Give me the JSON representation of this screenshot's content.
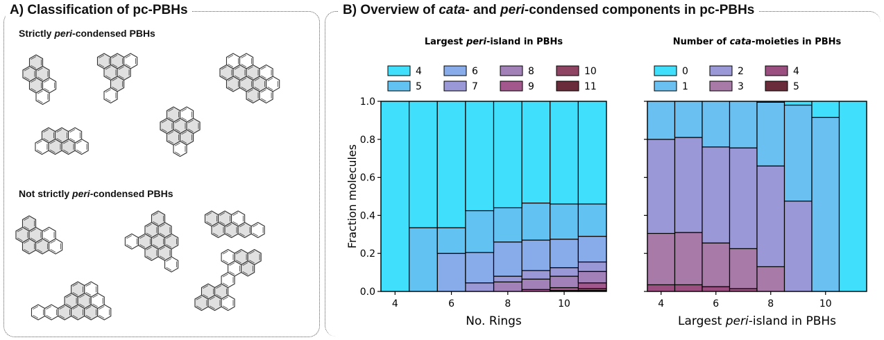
{
  "panel_a": {
    "title": "A) Classification of pc-PBHs",
    "strict": {
      "pre": "Strictly ",
      "em": "peri",
      "post": "-condensed PBHs"
    },
    "not_strict": {
      "pre": "Not strictly ",
      "em": "peri",
      "post": "-condensed PBHs"
    }
  },
  "panel_b": {
    "title_pre": "B) Overview of ",
    "title_em1": "cata",
    "title_mid": "- and ",
    "title_em2": "peri",
    "title_post": "-condensed components in pc-PBHs"
  },
  "colors": {
    "fill_grey": "#e0e0e0",
    "stroke": "#333333",
    "frame": "#555555"
  },
  "chart_data": [
    {
      "type": "bar",
      "stacked": true,
      "title_pre": "Largest ",
      "title_em": "peri",
      "title_post": "-island in PBHs",
      "xlabel": "No. Rings",
      "ylabel": "Fraction molecules",
      "ylim": [
        0,
        1.0
      ],
      "xlim": [
        3.5,
        11.5
      ],
      "x": [
        4,
        5,
        6,
        7,
        8,
        9,
        10,
        11
      ],
      "xticks": [
        "4",
        "6",
        "8",
        "10"
      ],
      "xtick_values": [
        4,
        6,
        8,
        10
      ],
      "yticks": [
        "0.0",
        "0.2",
        "0.4",
        "0.6",
        "0.8",
        "1.0"
      ],
      "ytick_values": [
        0,
        0.2,
        0.4,
        0.6,
        0.8,
        1.0
      ],
      "legend_placement": "top",
      "series": [
        {
          "name": "11",
          "color": "#6a2c3a",
          "values": [
            0,
            0,
            0,
            0,
            0,
            0,
            0,
            0.005
          ]
        },
        {
          "name": "10",
          "color": "#8e4462",
          "values": [
            0,
            0,
            0,
            0,
            0,
            0,
            0.005,
            0.01
          ]
        },
        {
          "name": "9",
          "color": "#a2588c",
          "values": [
            0,
            0,
            0,
            0,
            0,
            0.01,
            0.015,
            0.03
          ]
        },
        {
          "name": "8",
          "color": "#a280b8",
          "values": [
            0,
            0,
            0,
            0,
            0.05,
            0.055,
            0.06,
            0.06
          ]
        },
        {
          "name": "7",
          "color": "#9a98d6",
          "values": [
            0,
            0,
            0,
            0.045,
            0.03,
            0.045,
            0.045,
            0.05
          ]
        },
        {
          "name": "6",
          "color": "#88acea",
          "values": [
            0,
            0,
            0.2,
            0.16,
            0.18,
            0.16,
            0.15,
            0.135
          ]
        },
        {
          "name": "5",
          "color": "#62c2f2",
          "values": [
            0,
            0.335,
            0.135,
            0.22,
            0.18,
            0.195,
            0.185,
            0.17
          ]
        },
        {
          "name": "4",
          "color": "#40e0fc",
          "values": [
            1.0,
            0.665,
            0.665,
            0.575,
            0.56,
            0.535,
            0.54,
            0.54
          ]
        }
      ],
      "legend_order": [
        "4",
        "5",
        "6",
        "7",
        "8",
        "9",
        "10",
        "11"
      ]
    },
    {
      "type": "bar",
      "stacked": true,
      "title_pre": "Number of ",
      "title_em": "cata",
      "title_post": "-moieties in PBHs",
      "xlabel_pre": "Largest ",
      "xlabel_em": "peri",
      "xlabel_post": "-island in PBHs",
      "ylim": [
        0,
        1.0
      ],
      "xlim": [
        3.5,
        11.5
      ],
      "x": [
        4,
        5,
        6,
        7,
        8,
        9,
        10,
        11
      ],
      "xticks": [
        "4",
        "6",
        "8",
        "10"
      ],
      "xtick_values": [
        4,
        6,
        8,
        10
      ],
      "legend_placement": "top",
      "series": [
        {
          "name": "5",
          "color": "#6a2c3a",
          "values": [
            0,
            0,
            0,
            0,
            0,
            0,
            0,
            0
          ]
        },
        {
          "name": "4",
          "color": "#9a4f80",
          "values": [
            0.035,
            0.035,
            0.025,
            0.015,
            0,
            0,
            0,
            0
          ]
        },
        {
          "name": "3",
          "color": "#a87aa8",
          "values": [
            0.27,
            0.275,
            0.23,
            0.21,
            0.13,
            0,
            0,
            0
          ]
        },
        {
          "name": "2",
          "color": "#9a98d6",
          "values": [
            0.495,
            0.5,
            0.505,
            0.53,
            0.53,
            0.475,
            0,
            0
          ]
        },
        {
          "name": "1",
          "color": "#6ac0f0",
          "values": [
            0.2,
            0.19,
            0.24,
            0.245,
            0.335,
            0.505,
            0.915,
            0
          ]
        },
        {
          "name": "0",
          "color": "#40e0fc",
          "values": [
            0,
            0,
            0,
            0,
            0.005,
            0.02,
            0.085,
            1.0
          ]
        }
      ],
      "legend_order": [
        "0",
        "1",
        "2",
        "3",
        "4",
        "5"
      ]
    }
  ]
}
